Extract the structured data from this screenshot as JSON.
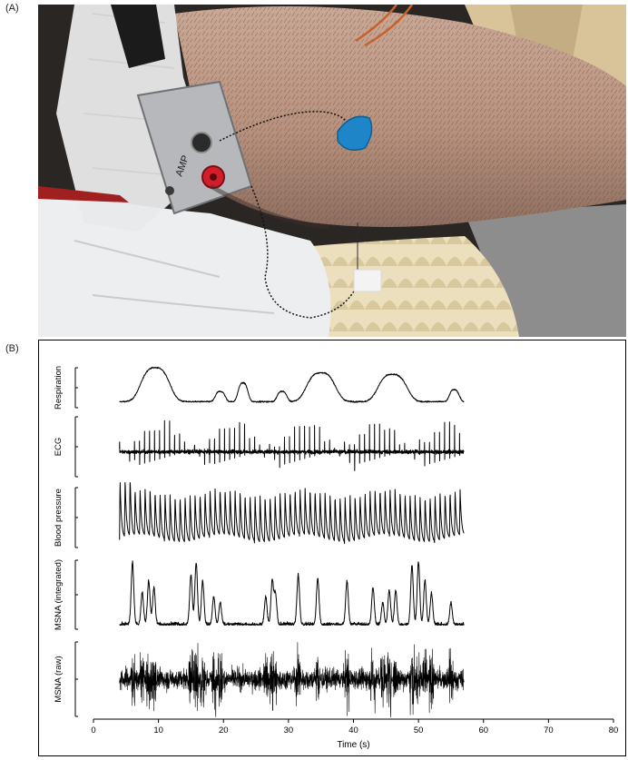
{
  "figure": {
    "panel_a_label": "(A)",
    "panel_b_label": "(B)",
    "photo": {
      "amp_label": "AMP",
      "colors": {
        "skin": "#b89a86",
        "bag": "#d9c49a",
        "foam": "#e8dcb8",
        "tape": "#e9e9ea",
        "blue_cap": "#1e86c8",
        "red_jack": "#d21e2a"
      }
    }
  },
  "chart_data": {
    "type": "line",
    "xlabel": "Time (s)",
    "xlim": [
      0,
      80
    ],
    "x_ticks": [
      0,
      10,
      20,
      30,
      40,
      50,
      60,
      70,
      80
    ],
    "x_tick_labels": [
      "0",
      "10",
      "20",
      "30",
      "40",
      "50",
      "60",
      "70",
      "80"
    ],
    "grid": false,
    "record_start_s": 4,
    "record_end_s": 57,
    "series": [
      {
        "name": "Respiration",
        "kind": "respiration",
        "breath_peaks_s": [
          9.5,
          19.5,
          23,
          29,
          35,
          46,
          55.5
        ],
        "breath_amplitudes": [
          1.0,
          0.3,
          0.55,
          0.3,
          0.85,
          0.8,
          0.35
        ]
      },
      {
        "name": "ECG",
        "kind": "ecg",
        "heart_rate_bpm": 78
      },
      {
        "name": "Blood pressure",
        "kind": "blood_pressure",
        "heart_rate_bpm": 78
      },
      {
        "name": "MSNA (integrated)",
        "kind": "msna_integrated",
        "burst_times_s": [
          6,
          7.5,
          8.5,
          9.3,
          15,
          15.8,
          16.8,
          18.5,
          19.5,
          26.5,
          27.5,
          28,
          31.5,
          34.5,
          39,
          43,
          44.5,
          45.5,
          46.5,
          49,
          50,
          51,
          52,
          55
        ],
        "burst_amplitudes": [
          1.0,
          0.5,
          0.7,
          0.6,
          0.8,
          1.0,
          0.7,
          0.45,
          0.35,
          0.45,
          0.7,
          0.5,
          0.8,
          0.75,
          0.7,
          0.6,
          0.35,
          0.55,
          0.55,
          0.95,
          1.0,
          0.7,
          0.5,
          0.35
        ]
      },
      {
        "name": "MSNA (raw)",
        "kind": "msna_raw"
      }
    ]
  }
}
